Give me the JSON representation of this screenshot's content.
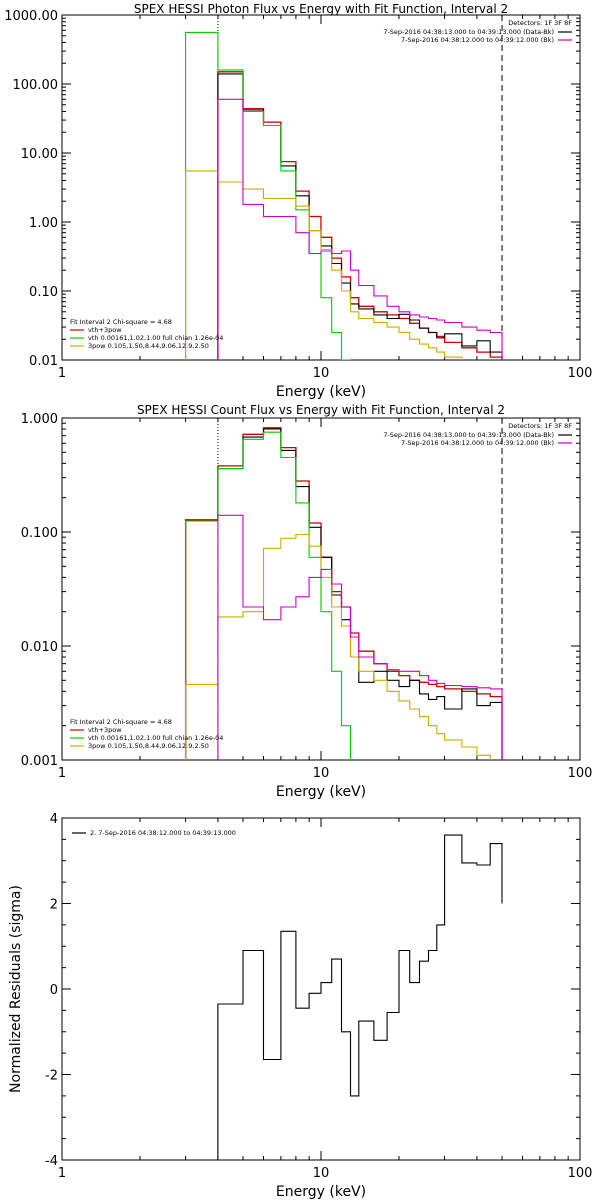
{
  "chart_data": [
    {
      "type": "line",
      "title": "SPEX HESSI Photon Flux vs Energy with Fit Function, Interval 2",
      "xlabel": "Energy (keV)",
      "ylabel": "",
      "x_scale": "log",
      "y_scale": "log",
      "xlim": [
        1,
        100
      ],
      "ylim": [
        0.01,
        1000
      ],
      "x_ticks": [
        {
          "v": 1,
          "label": "1"
        },
        {
          "v": 10,
          "label": "10"
        },
        {
          "v": 100,
          "label": "100"
        }
      ],
      "y_ticks": [
        {
          "v": 0.01,
          "label": "0.01"
        },
        {
          "v": 0.1,
          "label": "0.10"
        },
        {
          "v": 1,
          "label": "1.00"
        },
        {
          "v": 10,
          "label": "10.00"
        },
        {
          "v": 100,
          "label": "100.00"
        },
        {
          "v": 1000,
          "label": "1000.00"
        }
      ],
      "vlines": [
        {
          "x": 4.0,
          "style": "dotted",
          "color": "#000000"
        },
        {
          "x": 50.0,
          "style": "dashed",
          "color": "#000000"
        }
      ],
      "legend_tr": {
        "header": "Detectors: 1F 3F 8F",
        "items": [
          {
            "label": "7-Sep-2016 04:38:13.000 to 04:39:13.000 (Data-Bk)",
            "color": "#000000"
          },
          {
            "label": "7-Sep-2016 04:38:12.000 to 04:39:12.000 (Bk)",
            "color": "#cc00cc"
          }
        ]
      },
      "legend_bl": {
        "header": "Fit Interval 2   Chi-square = 4.68",
        "items": [
          {
            "label": "vth+3pow",
            "color": "#cc0000"
          },
          {
            "label": "vth 0.00161,1.02,1.00  full chian 1.26e-04",
            "color": "#00cc00"
          },
          {
            "label": "3pow 0.105,1.50,8.44,9.06,12.9,2.50",
            "color": "#ccaa00"
          }
        ]
      },
      "edges": [
        3.0,
        4.0,
        5.0,
        6.0,
        7.0,
        8.0,
        9.0,
        10.0,
        11.0,
        12.0,
        13.0,
        14.0,
        16.0,
        18.0,
        20.0,
        22.0,
        24.0,
        26.0,
        28.0,
        30.0,
        35.0,
        40.0,
        45.0,
        50.0
      ],
      "series": [
        {
          "color": "#cc0000",
          "width": 1.3,
          "values": [
            null,
            150.0,
            44.0,
            28.0,
            7.5,
            2.8,
            1.2,
            0.6,
            0.3,
            0.16,
            0.08,
            0.06,
            0.05,
            0.045,
            0.04,
            0.034,
            0.029,
            0.025,
            0.022,
            0.018,
            0.015,
            0.013,
            0.011
          ]
        },
        {
          "color": "#000000",
          "width": 1.1,
          "values": [
            null,
            140.0,
            42.0,
            25.0,
            6.5,
            2.4,
            0.75,
            0.45,
            0.25,
            0.13,
            0.065,
            0.055,
            0.045,
            0.04,
            0.046,
            0.038,
            0.029,
            0.025,
            0.021,
            0.024,
            0.016,
            0.019,
            0.013
          ]
        },
        {
          "color": "#00cc00",
          "width": 1.1,
          "values": [
            560.0,
            160.0,
            40.0,
            25.0,
            5.5,
            1.5,
            0.35,
            0.08,
            0.025,
            0.01,
            null,
            null,
            null,
            null,
            null,
            null,
            null,
            null,
            null,
            null,
            null,
            null,
            null
          ]
        },
        {
          "color": "#ccaa00",
          "width": 1.1,
          "values": [
            5.5,
            3.8,
            3.0,
            2.2,
            2.2,
            1.7,
            0.75,
            0.4,
            0.2,
            0.1,
            0.05,
            0.04,
            0.035,
            0.03,
            0.025,
            0.02,
            0.017,
            0.015,
            0.013,
            0.011,
            null,
            null,
            null
          ]
        },
        {
          "color": "#cc00cc",
          "width": 1.1,
          "values": [
            null,
            60.0,
            1.8,
            1.2,
            1.2,
            0.7,
            0.35,
            0.38,
            0.35,
            0.38,
            0.2,
            0.12,
            0.085,
            0.06,
            0.05,
            0.045,
            0.042,
            0.04,
            0.038,
            0.035,
            0.03,
            0.027,
            0.025
          ]
        }
      ]
    },
    {
      "type": "line",
      "title": "SPEX HESSI Count Flux vs Energy with Fit Function, Interval 2",
      "xlabel": "Energy (keV)",
      "ylabel": "",
      "x_scale": "log",
      "y_scale": "log",
      "xlim": [
        1,
        100
      ],
      "ylim": [
        0.001,
        1
      ],
      "x_ticks": [
        {
          "v": 1,
          "label": "1"
        },
        {
          "v": 10,
          "label": "10"
        },
        {
          "v": 100,
          "label": "100"
        }
      ],
      "y_ticks": [
        {
          "v": 0.001,
          "label": "0.001"
        },
        {
          "v": 0.01,
          "label": "0.010"
        },
        {
          "v": 0.1,
          "label": "0.100"
        },
        {
          "v": 1,
          "label": "1.000"
        }
      ],
      "vlines": [
        {
          "x": 4.0,
          "style": "dotted",
          "color": "#000000"
        },
        {
          "x": 50.0,
          "style": "dashed",
          "color": "#000000"
        }
      ],
      "legend_tr": {
        "header": "Detectors: 1F 3F 8F",
        "items": [
          {
            "label": "7-Sep-2016 04:38:13.000 to 04:39:13.000 (Data-Bk)",
            "color": "#000000"
          },
          {
            "label": "7-Sep-2016 04:38:12.000 to 04:39:12.000 (Bk)",
            "color": "#cc00cc"
          }
        ]
      },
      "legend_bl": {
        "header": "Fit Interval 2   Chi-square = 4.68",
        "items": [
          {
            "label": "vth+3pow",
            "color": "#cc0000"
          },
          {
            "label": "vth 0.00161,1.02,1.00  full chian 1.26e-04",
            "color": "#00cc00"
          },
          {
            "label": "3pow 0.105,1.50,8.44,9.06,12.9,2.50",
            "color": "#ccaa00"
          }
        ]
      },
      "edges": [
        3.0,
        4.0,
        5.0,
        6.0,
        7.0,
        8.0,
        9.0,
        10.0,
        11.0,
        12.0,
        13.0,
        14.0,
        16.0,
        18.0,
        20.0,
        22.0,
        24.0,
        26.0,
        28.0,
        30.0,
        35.0,
        40.0,
        45.0,
        50.0
      ],
      "series": [
        {
          "color": "#cc0000",
          "width": 1.3,
          "values": [
            0.128,
            0.38,
            0.72,
            0.82,
            0.55,
            0.28,
            0.12,
            0.06,
            0.03,
            0.022,
            0.013,
            0.009,
            0.007,
            0.006,
            0.0055,
            0.005,
            0.0048,
            0.0046,
            0.0044,
            0.0042,
            0.004,
            0.0038,
            0.0036
          ]
        },
        {
          "color": "#000000",
          "width": 1.1,
          "values": [
            0.125,
            0.36,
            0.68,
            0.8,
            0.52,
            0.25,
            0.11,
            0.06,
            0.028,
            0.017,
            0.008,
            0.0048,
            0.006,
            0.005,
            0.0044,
            0.005,
            0.0038,
            0.0034,
            0.0036,
            0.0028,
            0.0042,
            0.003,
            0.0032
          ]
        },
        {
          "color": "#00cc00",
          "width": 1.1,
          "values": [
            0.125,
            0.36,
            0.65,
            0.75,
            0.45,
            0.18,
            0.06,
            0.02,
            0.006,
            0.002,
            null,
            null,
            null,
            null,
            null,
            null,
            null,
            null,
            null,
            null,
            null,
            null,
            null
          ]
        },
        {
          "color": "#ccaa00",
          "width": 1.1,
          "values": [
            0.0046,
            0.018,
            0.02,
            0.072,
            0.088,
            0.095,
            0.075,
            0.04,
            0.022,
            0.015,
            0.008,
            0.006,
            0.005,
            0.004,
            0.0033,
            0.0028,
            0.0024,
            0.002,
            0.0017,
            0.0015,
            0.0013,
            0.0011,
            null
          ]
        },
        {
          "color": "#cc00cc",
          "width": 1.1,
          "values": [
            null,
            0.14,
            0.022,
            0.017,
            0.022,
            0.027,
            0.04,
            0.047,
            0.035,
            0.022,
            0.012,
            0.008,
            0.007,
            0.0062,
            0.006,
            0.006,
            0.0055,
            0.005,
            0.0047,
            0.0045,
            0.0044,
            0.0043,
            0.0042
          ]
        }
      ]
    },
    {
      "type": "line",
      "title": "",
      "xlabel": "Energy (keV)",
      "ylabel": "Normalized Residuals (sigma)",
      "x_scale": "log",
      "y_scale": "linear",
      "xlim": [
        1,
        100
      ],
      "ylim": [
        -4,
        4
      ],
      "x_ticks": [
        {
          "v": 1,
          "label": "1"
        },
        {
          "v": 10,
          "label": "10"
        },
        {
          "v": 100,
          "label": "100"
        }
      ],
      "y_ticks": [
        {
          "v": -4,
          "label": "-4"
        },
        {
          "v": -2,
          "label": "-2"
        },
        {
          "v": 0,
          "label": "0"
        },
        {
          "v": 2,
          "label": "2"
        },
        {
          "v": 4,
          "label": "4"
        }
      ],
      "vlines": [],
      "legend_tl": {
        "items": [
          {
            "label": "2.  7-Sep-2016 04:38:12.000 to 04:39:13.000",
            "color": "#000000"
          }
        ]
      },
      "edges": [
        4.0,
        5.0,
        6.0,
        7.0,
        8.0,
        9.0,
        10.0,
        11.0,
        12.0,
        13.0,
        14.0,
        16.0,
        18.0,
        20.0,
        22.0,
        24.0,
        26.0,
        28.0,
        30.0,
        35.0,
        40.0,
        45.0,
        50.0
      ],
      "series": [
        {
          "color": "#000000",
          "width": 1.1,
          "values": [
            -0.35,
            0.9,
            -1.65,
            1.35,
            -0.45,
            -0.1,
            0.15,
            0.7,
            -1.0,
            -2.5,
            -0.75,
            -1.2,
            -0.55,
            0.9,
            0.15,
            0.65,
            0.9,
            1.5,
            3.6,
            2.95,
            2.9,
            3.4,
            2.0
          ]
        }
      ],
      "step_start_from_bottom": true
    }
  ]
}
